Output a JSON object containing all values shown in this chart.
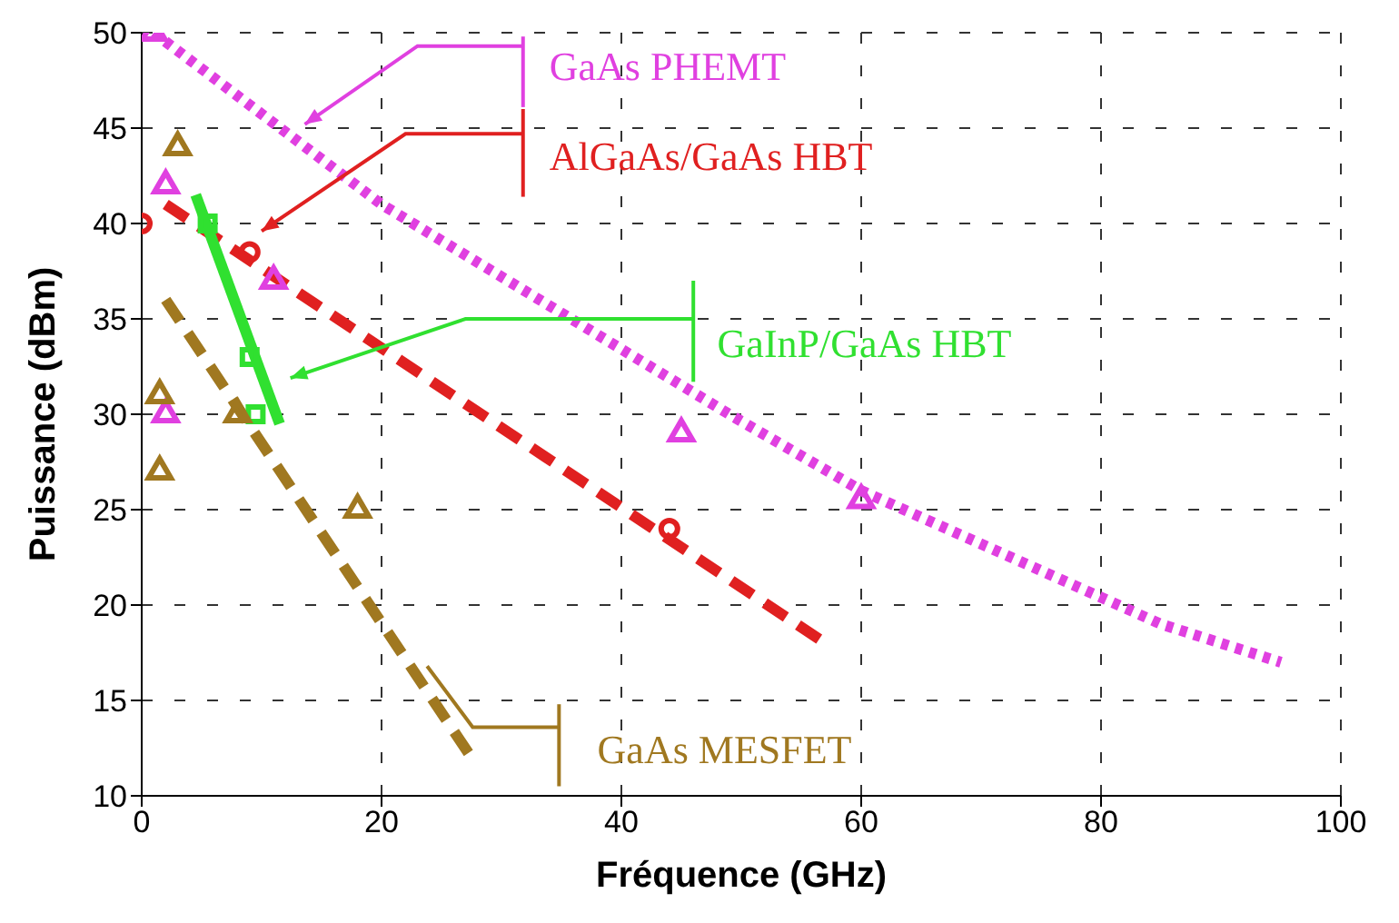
{
  "chart_data": {
    "type": "line",
    "xlabel": "Fréquence (GHz)",
    "ylabel": "Puissance (dBm)",
    "xlim": [
      0,
      100
    ],
    "ylim": [
      10,
      50
    ],
    "xticks": [
      0,
      20,
      40,
      60,
      80,
      100
    ],
    "yticks": [
      10,
      15,
      20,
      25,
      30,
      35,
      40,
      45,
      50
    ],
    "grid": true,
    "legend": "top",
    "series": [
      {
        "name": "GaAs PHEMT",
        "type": "line",
        "color": "#e040e0",
        "line_style": "dotted",
        "marker": "none",
        "x": [
          1,
          20,
          49,
          60,
          85,
          95
        ],
        "values": [
          50,
          41,
          30,
          26,
          19,
          17
        ]
      },
      {
        "type": "scatter",
        "color": "#e040e0",
        "marker": "triangle",
        "x": [
          1,
          2,
          2,
          11,
          45,
          60
        ],
        "values": [
          50,
          42,
          30,
          37,
          29,
          25.5
        ]
      },
      {
        "name": "AlGaAs/GaAs HBT",
        "type": "line",
        "color": "#e02020",
        "line_style": "dashed",
        "marker": "none",
        "x": [
          2,
          57
        ],
        "values": [
          41,
          18
        ]
      },
      {
        "type": "scatter",
        "color": "#e02020",
        "marker": "circle",
        "x": [
          0,
          9,
          44
        ],
        "values": [
          40,
          38.5,
          24
        ]
      },
      {
        "name": "GaInP/GaAs HBT",
        "type": "line",
        "color": "#30e030",
        "line_style": "solid",
        "marker": "none",
        "x": [
          4.5,
          11.5
        ],
        "values": [
          41.5,
          29.5
        ]
      },
      {
        "type": "scatter",
        "color": "#30e030",
        "marker": "square",
        "x": [
          5.5,
          9,
          9.5
        ],
        "values": [
          40,
          33,
          30
        ]
      },
      {
        "name": "GaAs MESFET",
        "type": "line",
        "color": "#a07820",
        "line_style": "dashed",
        "marker": "none",
        "x": [
          2,
          27.5
        ],
        "values": [
          36,
          12
        ]
      },
      {
        "type": "scatter",
        "color": "#a07820",
        "marker": "triangle",
        "x": [
          3,
          1.5,
          1.5,
          8,
          18
        ],
        "values": [
          44,
          31,
          27,
          30,
          25
        ]
      }
    ]
  }
}
